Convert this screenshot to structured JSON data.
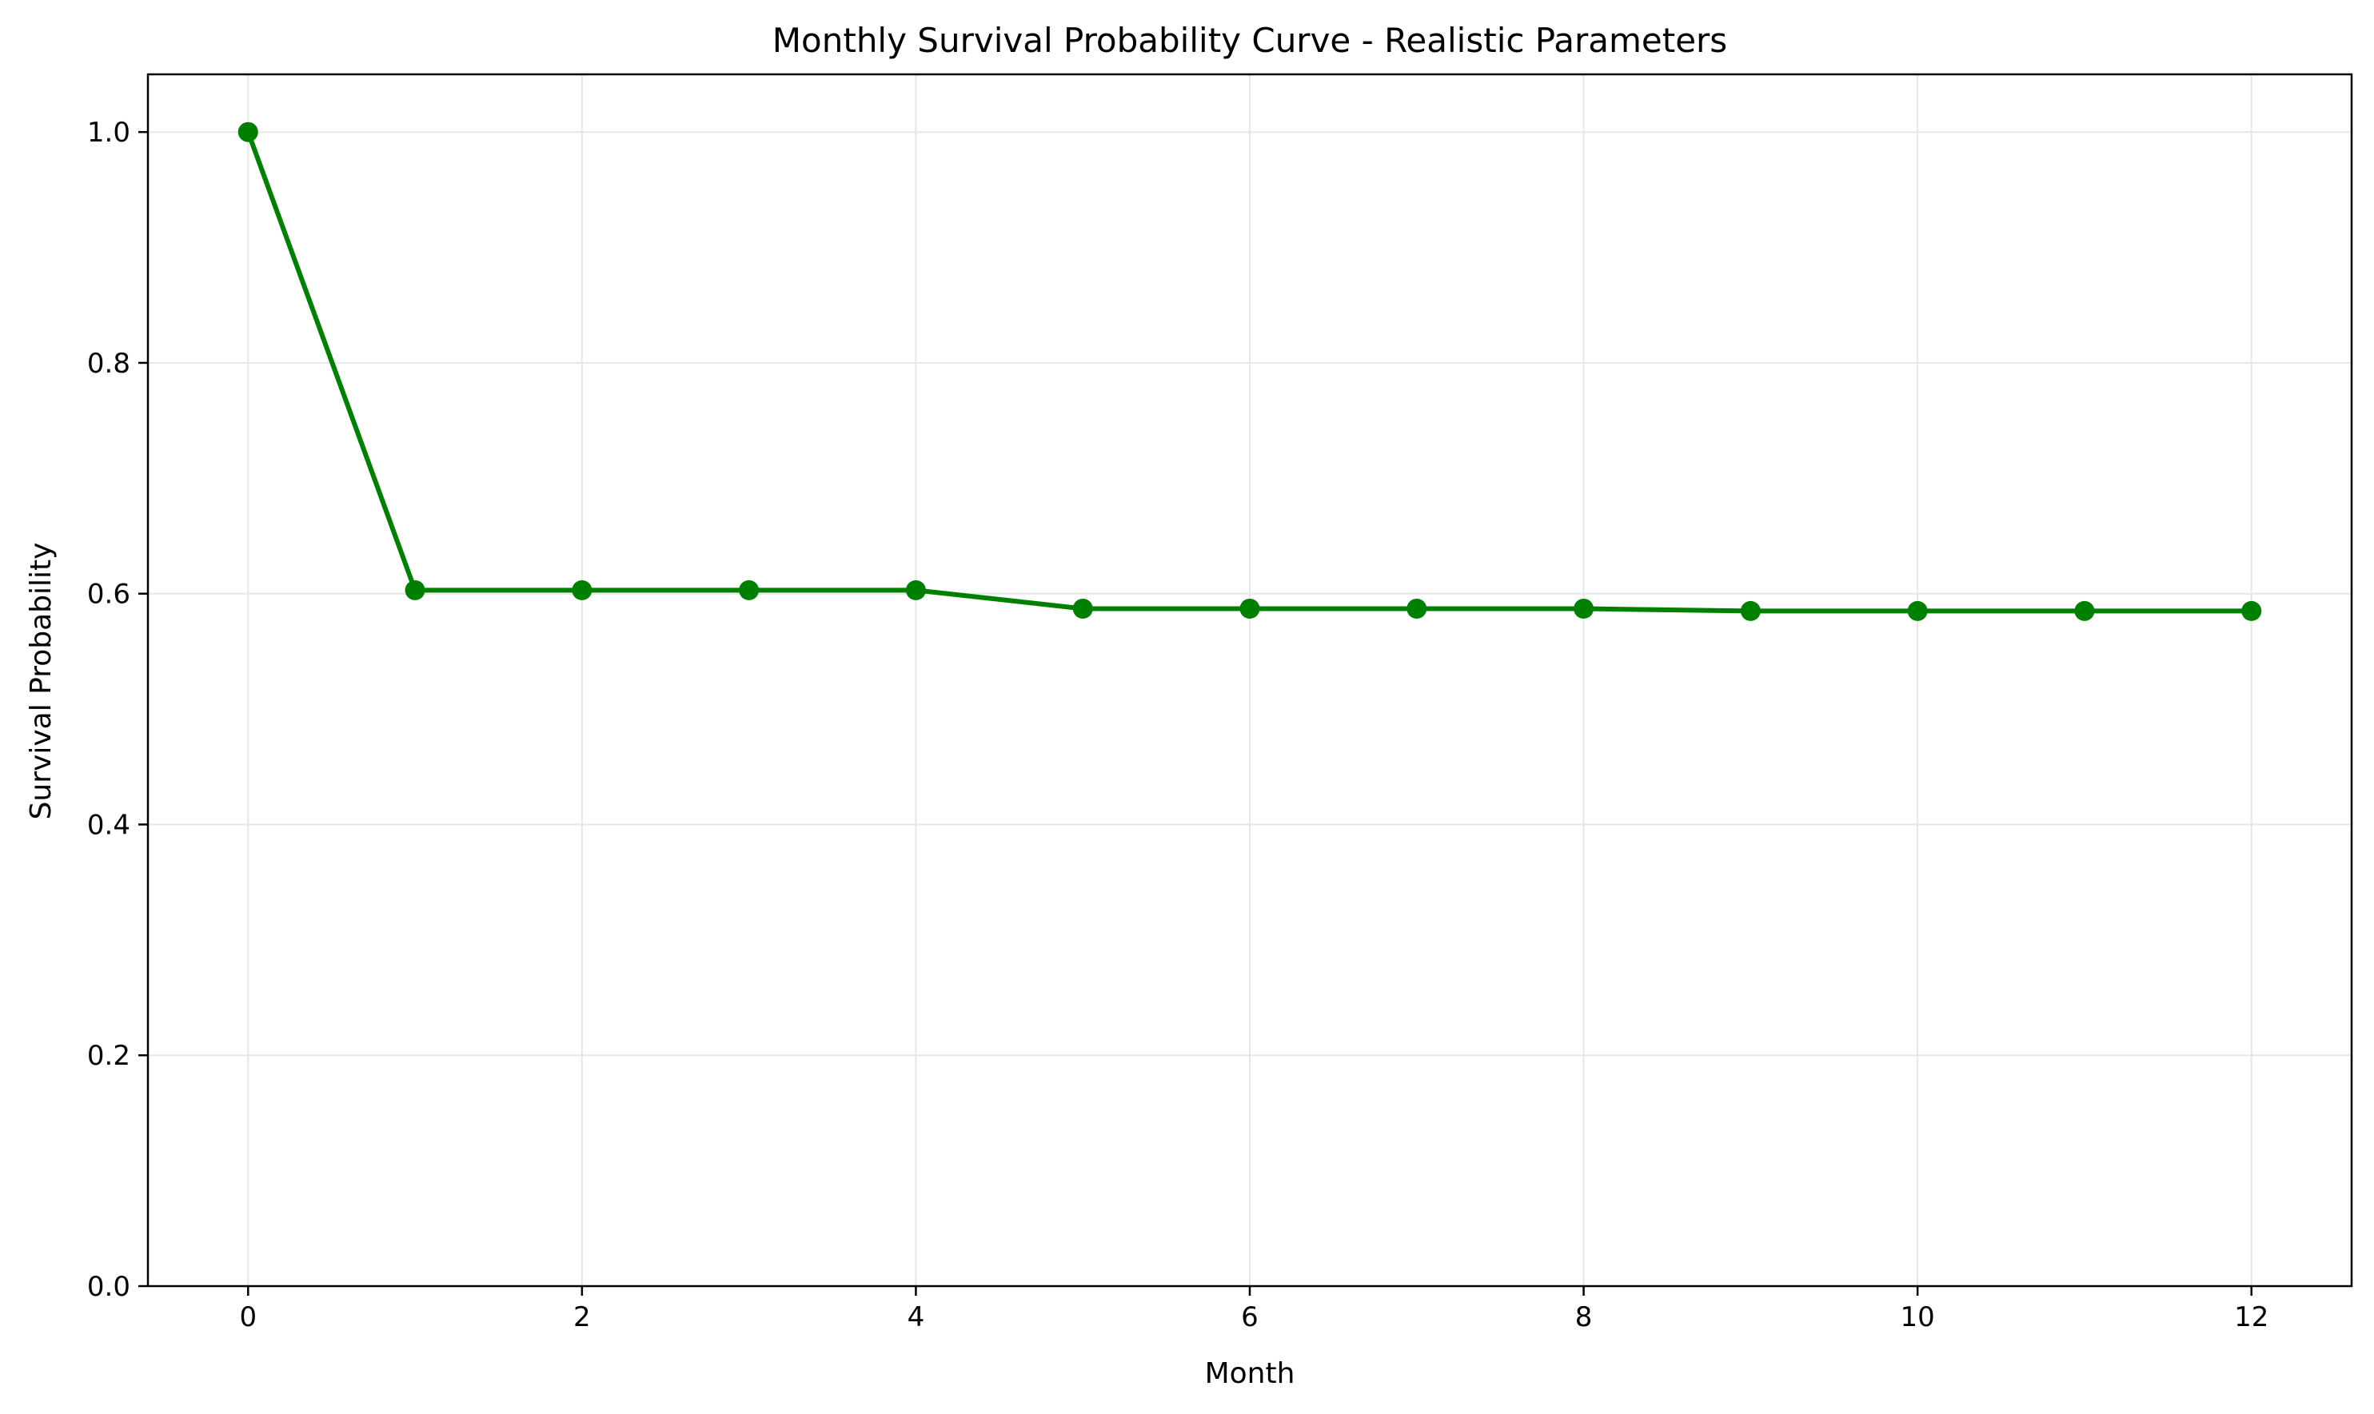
{
  "chart_data": {
    "type": "line",
    "title": "Monthly Survival Probability Curve - Realistic Parameters",
    "xlabel": "Month",
    "ylabel": "Survival Probability",
    "x": [
      0,
      1,
      2,
      3,
      4,
      5,
      6,
      7,
      8,
      9,
      10,
      11,
      12
    ],
    "series": [
      {
        "values": [
          1.0,
          0.603,
          0.603,
          0.603,
          0.603,
          0.587,
          0.587,
          0.587,
          0.587,
          0.585,
          0.585,
          0.585,
          0.585
        ],
        "color": "#008000",
        "marker": "circle"
      }
    ],
    "xlim": [
      -0.6,
      12.6
    ],
    "ylim": [
      0.0,
      1.05
    ],
    "xticks": [
      0,
      2,
      4,
      6,
      8,
      10,
      12
    ],
    "xtick_labels": [
      "0",
      "2",
      "4",
      "6",
      "8",
      "10",
      "12"
    ],
    "yticks": [
      0.0,
      0.2,
      0.4,
      0.6,
      0.8,
      1.0
    ],
    "ytick_labels": [
      "0.0",
      "0.2",
      "0.4",
      "0.6",
      "0.8",
      "1.0"
    ],
    "grid": true,
    "grid_color": "#e6e6e6",
    "axis_color": "#000000"
  }
}
